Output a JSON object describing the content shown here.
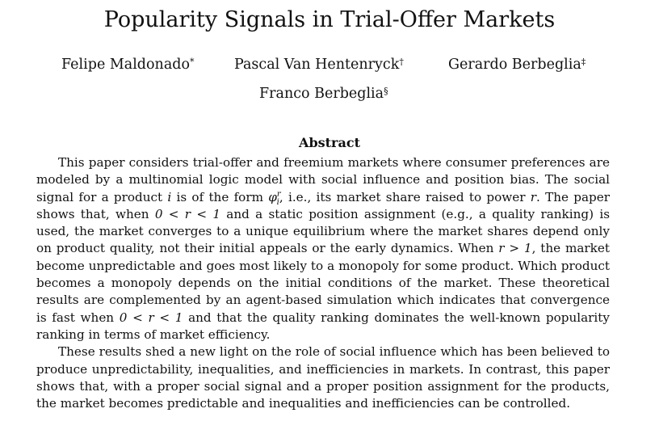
{
  "title": "Popularity Signals in Trial-Offer Markets",
  "authors": [
    {
      "name": "Felipe Maldonado",
      "mark": "*"
    },
    {
      "name": "Pascal Van Hentenryck",
      "mark": "†"
    },
    {
      "name": "Gerardo Berbeglia",
      "mark": "‡"
    },
    {
      "name": "Franco Berbeglia",
      "mark": "§"
    }
  ],
  "abstract_heading": "Abstract",
  "paragraph1": {
    "s1": "This paper considers trial-offer and freemium markets where consumer preferences are modeled by a multinomial logic model with social influence and position bias. The social signal for a product ",
    "var_i": "i",
    "s2": " is of the form ",
    "phi": "φ",
    "phi_sup": "r",
    "phi_sub": "i",
    "s3": ", i.e., its market share raised to power ",
    "var_r": "r",
    "s4": ". The paper shows that, when ",
    "cond1": "0 < r < 1",
    "s5": " and a static position assignment (e.g., a quality ranking) is used, the market converges to a unique equilibrium where the market shares depend only on product quality, not their initial appeals or the early dynamics. When ",
    "cond2": "r > 1",
    "s6": ", the market become unpredictable and goes most likely to a monopoly for some product. Which product becomes a monopoly depends on the initial conditions of the market. These theoretical results are complemented by an agent-based simulation which indicates that convergence is fast when ",
    "cond3": "0 < r < 1",
    "s7": " and that the quality ranking dominates the well-known popularity ranking in terms of market efficiency."
  },
  "paragraph2": "These results shed a new light on the role of social influence which has been believed to produce unpredictability, inequalities, and inefficiencies in markets. In contrast, this paper shows that, with a proper social signal and a proper position assignment for the products, the market becomes predictable and inequalities and inefficiencies can be controlled."
}
